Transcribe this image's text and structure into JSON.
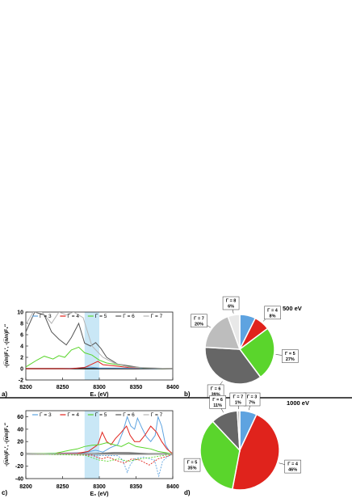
{
  "panel_labels": {
    "a": "a)",
    "b": "b)",
    "c": "c)",
    "d": "d)"
  },
  "colors": {
    "g3": "#5ea3e0",
    "g4": "#e0231c",
    "g5": "#5ad52c",
    "g6": "#555555",
    "g7": "#b5b5b5",
    "band": "#bfe3f5"
  },
  "chart_data": [
    {
      "id": "a",
      "type": "line",
      "xlabel": "E₀ (eV)",
      "ylabel": "-(n̅/n)F₁′, -(n̅/n)F₁″",
      "xlim": [
        8200,
        8400
      ],
      "ylim": [
        -2,
        10
      ],
      "xticks": [
        8200,
        8250,
        8300,
        8350,
        8400
      ],
      "yticks": [
        -2,
        0,
        2,
        4,
        6,
        8,
        10
      ],
      "shaded_band": [
        8280,
        8300
      ],
      "legend": [
        "Γ = 3",
        "Γ = 4",
        "Γ = 5",
        "Γ = 6",
        "Γ = 7"
      ],
      "series": [
        {
          "name": "Γ = 3",
          "color": "#5ea3e0",
          "x": [
            8200,
            8250,
            8270,
            8285,
            8300,
            8320,
            8400
          ],
          "y": [
            0,
            0,
            0.1,
            0.3,
            0.1,
            0.1,
            0
          ]
        },
        {
          "name": "Γ = 4",
          "color": "#e0231c",
          "x": [
            8200,
            8260,
            8280,
            8290,
            8298,
            8305,
            8320,
            8340,
            8400
          ],
          "y": [
            0,
            0,
            0.2,
            0.8,
            1.3,
            0.7,
            0.5,
            0.2,
            0
          ]
        },
        {
          "name": "Γ = 5",
          "color": "#5ad52c",
          "x": [
            8200,
            8215,
            8225,
            8237,
            8245,
            8253,
            8262,
            8272,
            8280,
            8290,
            8300,
            8310,
            8325,
            8340,
            8360,
            8400
          ],
          "y": [
            0.3,
            1.5,
            2.2,
            1.7,
            2.3,
            2.0,
            3.3,
            3.8,
            2.8,
            2.4,
            1.5,
            1.0,
            0.7,
            0.4,
            0.1,
            0
          ]
        },
        {
          "name": "Γ = 6",
          "color": "#555555",
          "x": [
            8200,
            8212,
            8225,
            8235,
            8245,
            8255,
            8262,
            8272,
            8280,
            8288,
            8295,
            8302,
            8310,
            8325,
            8340,
            8360,
            8400
          ],
          "y": [
            6.5,
            10,
            9.5,
            6.5,
            5.2,
            4.2,
            5.5,
            8.0,
            4.5,
            4.0,
            4.6,
            3.6,
            2.0,
            0.8,
            0.5,
            0.1,
            0
          ]
        },
        {
          "name": "Γ = 7",
          "color": "#b5b5b5",
          "x": [
            8200,
            8210,
            8222,
            8235,
            8245,
            8255,
            8265,
            8278,
            8290,
            8305,
            8320,
            8340,
            8400
          ],
          "y": [
            7.8,
            10,
            10,
            8.0,
            10,
            9.5,
            10,
            9.0,
            4.0,
            2.0,
            1.0,
            0.3,
            0
          ]
        }
      ]
    },
    {
      "id": "b",
      "type": "pie",
      "title": "500 eV",
      "slices": [
        {
          "label": "Γ = 3",
          "value": 8,
          "color": "#5ea3e0",
          "pct": "8%",
          "show_label": false
        },
        {
          "label": "Γ = 4",
          "value": 8,
          "color": "#e0231c",
          "pct": "8%",
          "show_label": true
        },
        {
          "label": "Γ = 5",
          "value": 27,
          "color": "#5ad52c",
          "pct": "27%",
          "show_label": true
        },
        {
          "label": "Γ = 6",
          "value": 39,
          "color": "#666666",
          "pct": "39%",
          "show_label": true
        },
        {
          "label": "Γ = 7",
          "value": 20,
          "color": "#bdbdbd",
          "pct": "20%",
          "show_label": true
        },
        {
          "label": "Γ = 8",
          "value": 6,
          "color": "#e8e8e8",
          "pct": "6%",
          "show_label": true
        }
      ]
    },
    {
      "id": "c",
      "type": "line",
      "xlabel": "E₀ (eV)",
      "ylabel": "-(n̅/n)F₁′, -(n̅/n)F₁″",
      "xlim": [
        8200,
        8400
      ],
      "ylim": [
        -40,
        70
      ],
      "xticks": [
        8200,
        8250,
        8300,
        8350,
        8400
      ],
      "yticks": [
        -40,
        -20,
        0,
        20,
        40,
        60
      ],
      "shaded_band": [
        8280,
        8300
      ],
      "legend": [
        "Γ = 3",
        "Γ = 4",
        "Γ = 5",
        "Γ = 6",
        "Γ = 7"
      ],
      "series": [
        {
          "name": "Γ = 3",
          "color": "#5ea3e0",
          "x": [
            8200,
            8280,
            8295,
            8305,
            8315,
            8325,
            8332,
            8338,
            8343,
            8348,
            8352,
            8358,
            8364,
            8370,
            8376,
            8380,
            8385,
            8390,
            8395,
            8400
          ],
          "y": [
            0,
            2,
            6,
            3,
            10,
            15,
            35,
            60,
            45,
            40,
            58,
            42,
            28,
            20,
            30,
            60,
            45,
            15,
            5,
            0
          ]
        },
        {
          "name": "Γ = 4",
          "color": "#e0231c",
          "x": [
            8200,
            8270,
            8285,
            8298,
            8304,
            8310,
            8316,
            8322,
            8330,
            8337,
            8342,
            8348,
            8355,
            8362,
            8370,
            8378,
            8385,
            8392,
            8400
          ],
          "y": [
            0,
            1,
            4,
            15,
            35,
            20,
            15,
            25,
            35,
            45,
            30,
            20,
            20,
            30,
            45,
            35,
            20,
            8,
            0
          ]
        },
        {
          "name": "Γ = 5",
          "color": "#5ad52c",
          "x": [
            8200,
            8240,
            8260,
            8270,
            8280,
            8290,
            8300,
            8310,
            8320,
            8330,
            8340,
            8350,
            8360,
            8370,
            8380,
            8400
          ],
          "y": [
            0,
            1,
            6,
            8,
            12,
            14,
            15,
            18,
            15,
            12,
            18,
            12,
            10,
            8,
            4,
            0
          ]
        },
        {
          "name": "Γ = 6",
          "color": "#555555",
          "x": [
            8200,
            8280,
            8300,
            8320,
            8340,
            8360,
            8380,
            8400
          ],
          "y": [
            0,
            0,
            1,
            2,
            2,
            1,
            0,
            0
          ]
        },
        {
          "name": "Γ = 7",
          "color": "#b5b5b5",
          "x": [
            8200,
            8300,
            8340,
            8400
          ],
          "y": [
            0,
            0,
            0.5,
            0
          ]
        }
      ],
      "dashed_series": [
        {
          "color": "#5ea3e0",
          "x": [
            8200,
            8325,
            8332,
            8338,
            8342,
            8348,
            8360,
            8375,
            8381,
            8386,
            8392,
            8400
          ],
          "y": [
            0,
            -3,
            -10,
            -30,
            -18,
            -8,
            -5,
            -10,
            -36,
            -12,
            -5,
            0
          ]
        },
        {
          "color": "#e0231c",
          "x": [
            8200,
            8290,
            8303,
            8312,
            8322,
            8334,
            8344,
            8355,
            8368,
            8380,
            8392,
            8400
          ],
          "y": [
            0,
            -2,
            -8,
            -5,
            -10,
            -15,
            -8,
            -10,
            -18,
            -8,
            -4,
            0
          ]
        },
        {
          "color": "#5ad52c",
          "x": [
            8200,
            8280,
            8290,
            8300,
            8312,
            8325,
            8340,
            8355,
            8370,
            8385,
            8400
          ],
          "y": [
            0,
            -2,
            -6,
            -10,
            -12,
            -8,
            -12,
            -8,
            -6,
            -3,
            0
          ]
        }
      ]
    },
    {
      "id": "d",
      "type": "pie",
      "title": "1000 eV",
      "slices": [
        {
          "label": "Γ = 3",
          "value": 7,
          "color": "#5ea3e0",
          "pct": "7%",
          "show_label": true
        },
        {
          "label": "Γ = 4",
          "value": 46,
          "color": "#e0231c",
          "pct": "46%",
          "show_label": true
        },
        {
          "label": "Γ = 5",
          "value": 35,
          "color": "#5ad52c",
          "pct": "35%",
          "show_label": true
        },
        {
          "label": "Γ = 6",
          "value": 11,
          "color": "#666666",
          "pct": "11%",
          "show_label": true
        },
        {
          "label": "Γ = 7",
          "value": 1,
          "color": "#bdbdbd",
          "pct": "1%",
          "show_label": true
        }
      ]
    }
  ]
}
